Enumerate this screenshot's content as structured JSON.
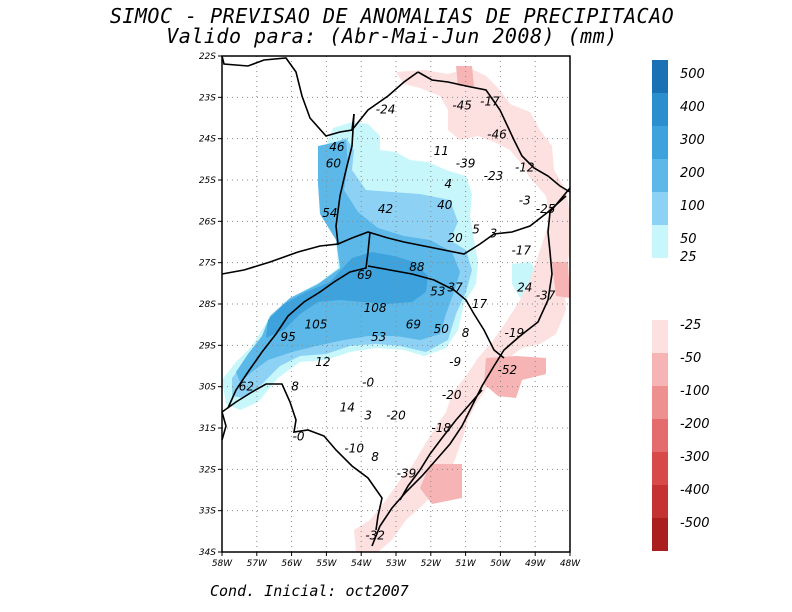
{
  "title": "SIMOC - PREVISAO DE ANOMALIAS DE PRECIPITACAO",
  "subtitle": "Valido para: (Abr-Mai-Jun 2008) (mm)",
  "footer": "Cond. Inicial: oct2007",
  "axes": {
    "lat_labels": [
      "22S",
      "23S",
      "24S",
      "25S",
      "26S",
      "27S",
      "28S",
      "29S",
      "30S",
      "31S",
      "32S",
      "33S",
      "34S"
    ],
    "lon_labels": [
      "58W",
      "57W",
      "56W",
      "55W",
      "54W",
      "53W",
      "52W",
      "51W",
      "50W",
      "49W",
      "48W"
    ]
  },
  "colorbar_positive": [
    {
      "label": "500",
      "color": "#1a72b5"
    },
    {
      "label": "400",
      "color": "#2b8ecf"
    },
    {
      "label": "300",
      "color": "#3ea2dc"
    },
    {
      "label": "200",
      "color": "#5cb8e8"
    },
    {
      "label": "100",
      "color": "#8dd2f5"
    },
    {
      "label": "50",
      "color": "#c8f7fb"
    },
    {
      "label": "25",
      "color": ""
    }
  ],
  "colorbar_negative": [
    {
      "label": "-25",
      "color": "#fde0e0"
    },
    {
      "label": "-50",
      "color": "#f7b4b4"
    },
    {
      "label": "-100",
      "color": "#ef9090"
    },
    {
      "label": "-200",
      "color": "#e46c6c"
    },
    {
      "label": "-300",
      "color": "#d84a4a"
    },
    {
      "label": "-400",
      "color": "#c43232"
    },
    {
      "label": "-500",
      "color": "#aa1e1e"
    }
  ],
  "station_values": [
    {
      "text": "-24",
      "lon": -53.3,
      "lat": -23.3
    },
    {
      "text": "-45",
      "lon": -51.1,
      "lat": -23.2
    },
    {
      "text": "-17",
      "lon": -50.3,
      "lat": -23.1
    },
    {
      "text": "-46",
      "lon": -50.1,
      "lat": -23.9
    },
    {
      "text": "46",
      "lon": -54.7,
      "lat": -24.2
    },
    {
      "text": "11",
      "lon": -51.7,
      "lat": -24.3
    },
    {
      "text": "60",
      "lon": -54.8,
      "lat": -24.6
    },
    {
      "text": "-39",
      "lon": -51.0,
      "lat": -24.6
    },
    {
      "text": "-12",
      "lon": -49.3,
      "lat": -24.7
    },
    {
      "text": "-23",
      "lon": -50.2,
      "lat": -24.9
    },
    {
      "text": "4",
      "lon": -51.5,
      "lat": -25.1
    },
    {
      "text": "40",
      "lon": -51.6,
      "lat": -25.6
    },
    {
      "text": "42",
      "lon": -53.3,
      "lat": -25.7
    },
    {
      "text": "-3",
      "lon": -49.3,
      "lat": -25.5
    },
    {
      "text": "-25",
      "lon": -48.7,
      "lat": -25.7
    },
    {
      "text": "54",
      "lon": -54.9,
      "lat": -25.8
    },
    {
      "text": "5",
      "lon": -50.7,
      "lat": -26.2
    },
    {
      "text": "3",
      "lon": -50.2,
      "lat": -26.3
    },
    {
      "text": "20",
      "lon": -51.3,
      "lat": -26.4
    },
    {
      "text": "-17",
      "lon": -49.4,
      "lat": -26.7
    },
    {
      "text": "88",
      "lon": -52.4,
      "lat": -27.1
    },
    {
      "text": "69",
      "lon": -53.9,
      "lat": -27.3
    },
    {
      "text": "37",
      "lon": -51.3,
      "lat": -27.6
    },
    {
      "text": "53",
      "lon": -51.8,
      "lat": -27.7
    },
    {
      "text": "24",
      "lon": -49.3,
      "lat": -27.6
    },
    {
      "text": "-37",
      "lon": -48.7,
      "lat": -27.8
    },
    {
      "text": "17",
      "lon": -50.6,
      "lat": -28.0
    },
    {
      "text": "108",
      "lon": -53.6,
      "lat": -28.1
    },
    {
      "text": "105",
      "lon": -55.3,
      "lat": -28.5
    },
    {
      "text": "69",
      "lon": -52.5,
      "lat": -28.5
    },
    {
      "text": "50",
      "lon": -51.7,
      "lat": -28.6
    },
    {
      "text": "8",
      "lon": -51.0,
      "lat": -28.7
    },
    {
      "text": "-19",
      "lon": -49.6,
      "lat": -28.7
    },
    {
      "text": "95",
      "lon": -56.1,
      "lat": -28.8
    },
    {
      "text": "53",
      "lon": -53.5,
      "lat": -28.8
    },
    {
      "text": "12",
      "lon": -55.1,
      "lat": -29.4
    },
    {
      "text": "-9",
      "lon": -51.3,
      "lat": -29.4
    },
    {
      "text": "-52",
      "lon": -49.8,
      "lat": -29.6
    },
    {
      "text": "-0",
      "lon": -53.8,
      "lat": -29.9
    },
    {
      "text": "62",
      "lon": -57.3,
      "lat": -30.0
    },
    {
      "text": "8",
      "lon": -55.9,
      "lat": -30.0
    },
    {
      "text": "-20",
      "lon": -51.4,
      "lat": -30.2
    },
    {
      "text": "14",
      "lon": -54.4,
      "lat": -30.5
    },
    {
      "text": "3",
      "lon": -53.8,
      "lat": -30.7
    },
    {
      "text": "-20",
      "lon": -53.0,
      "lat": -30.7
    },
    {
      "text": "-18",
      "lon": -51.7,
      "lat": -31.0
    },
    {
      "text": "-0",
      "lon": -55.8,
      "lat": -31.2
    },
    {
      "text": "-10",
      "lon": -54.2,
      "lat": -31.5
    },
    {
      "text": "8",
      "lon": -53.6,
      "lat": -31.7
    },
    {
      "text": "-39",
      "lon": -52.7,
      "lat": -32.1
    },
    {
      "text": "-32",
      "lon": -53.6,
      "lat": -33.6
    }
  ]
}
